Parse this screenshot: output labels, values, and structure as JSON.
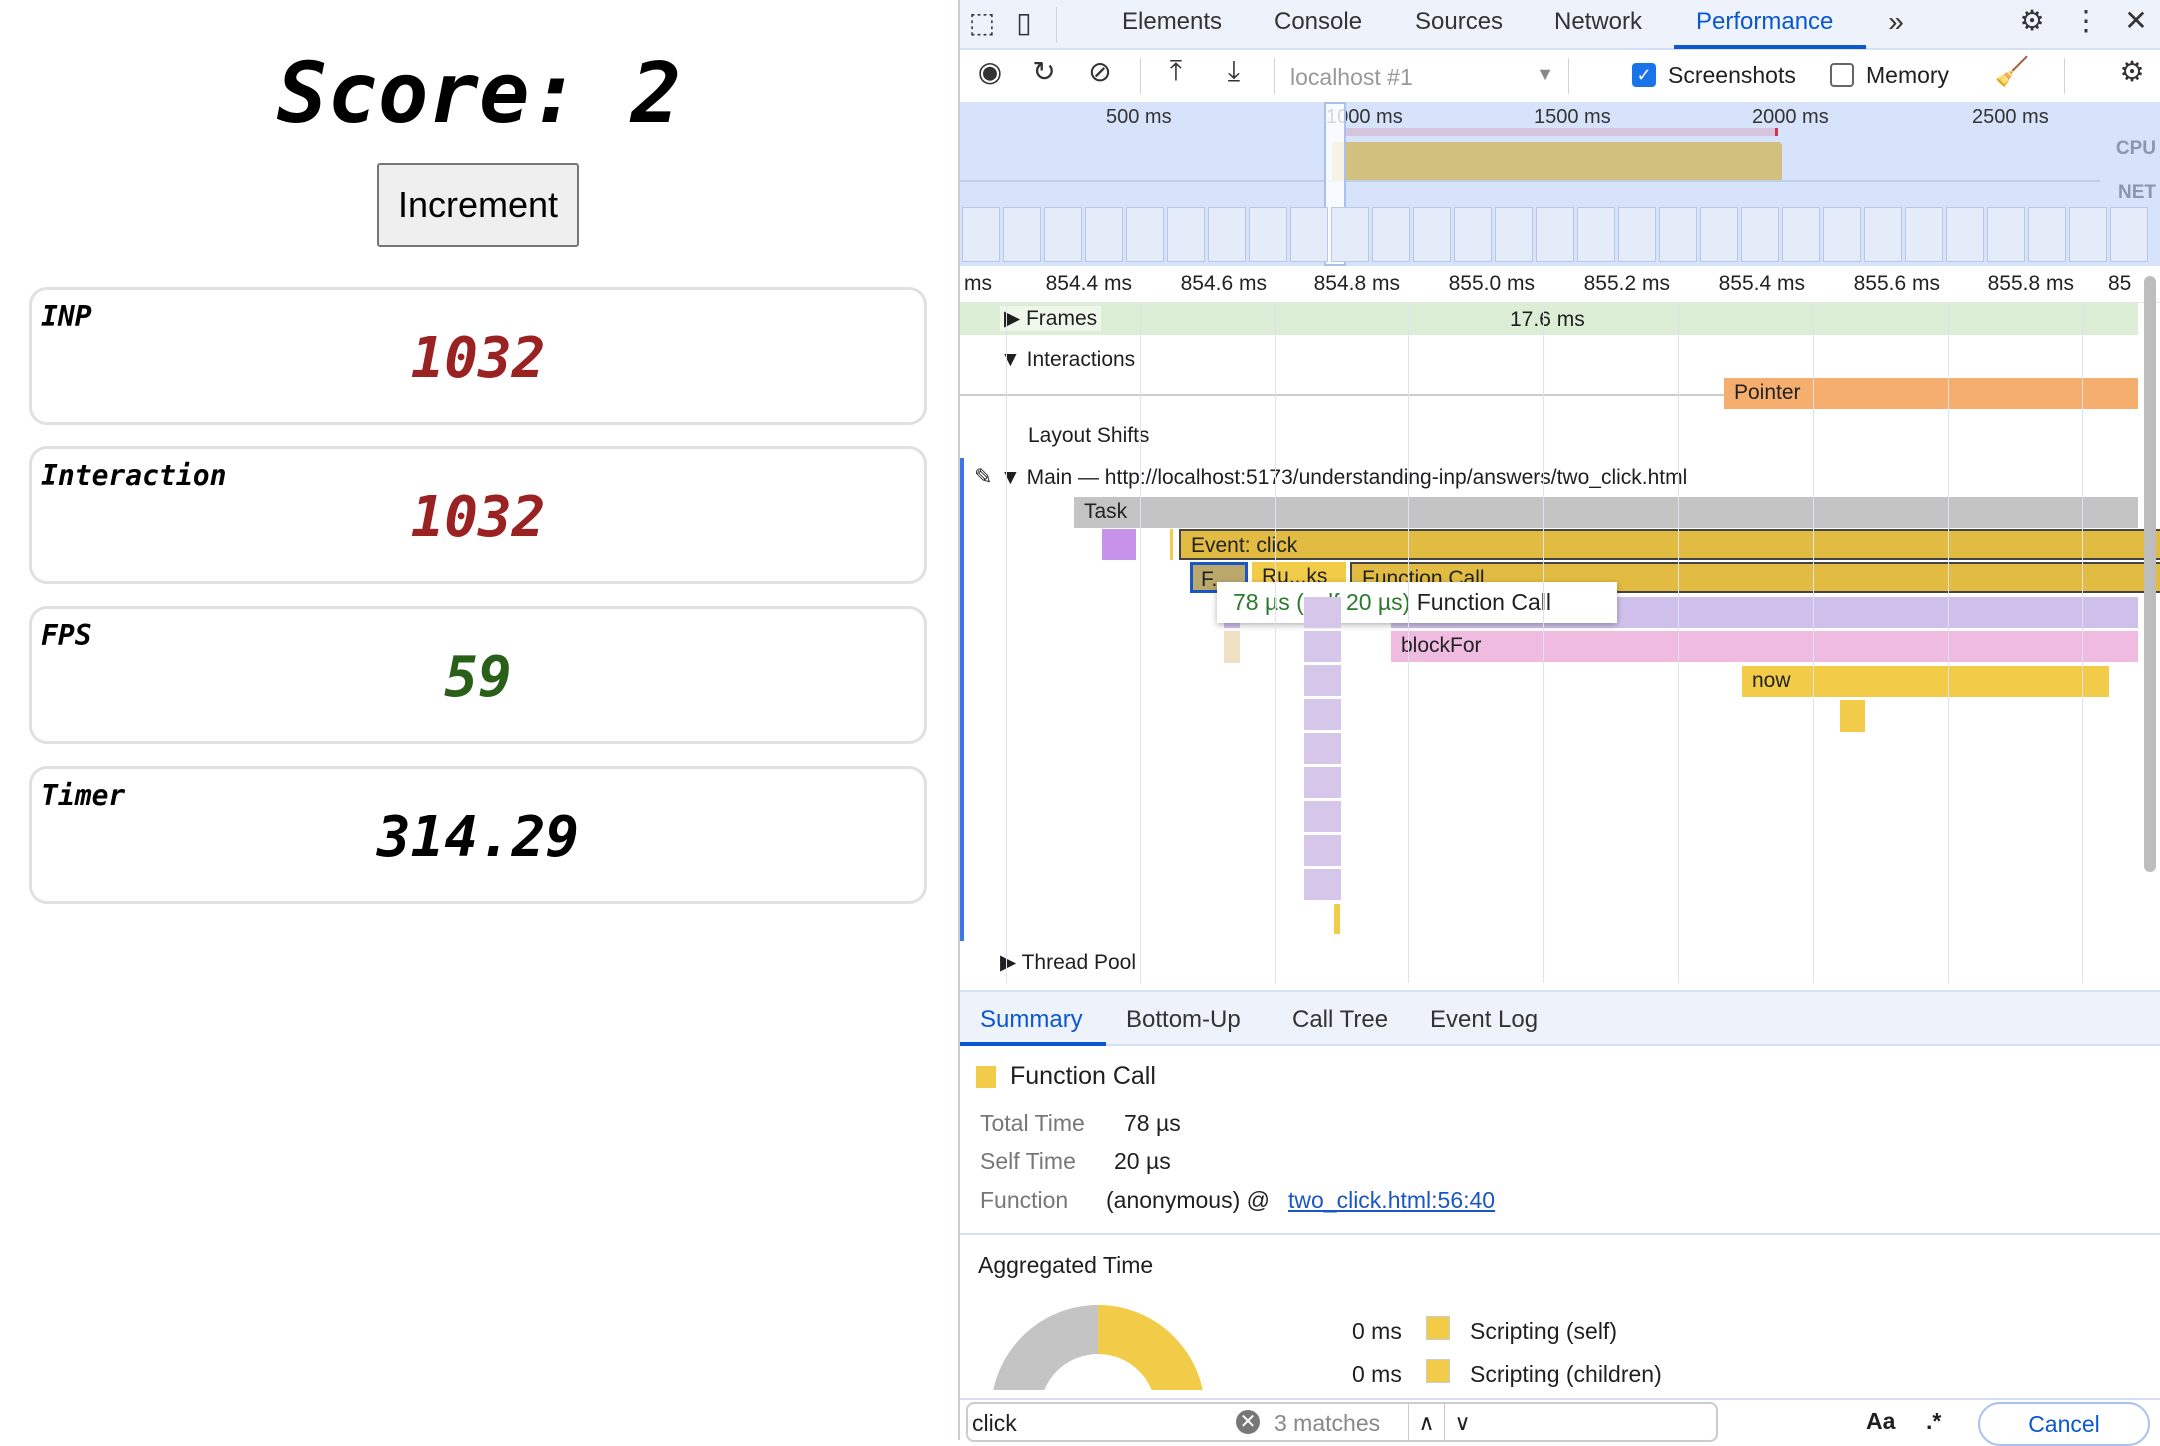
{
  "page": {
    "score": "Score: 2",
    "increment": "Increment",
    "cards": [
      {
        "label": "INP",
        "value": "1032",
        "color": "#9b2222"
      },
      {
        "label": "Interaction",
        "value": "1032",
        "color": "#9b2222"
      },
      {
        "label": "FPS",
        "value": "59",
        "color": "#2a5f1a"
      },
      {
        "label": "Timer",
        "value": "314.29",
        "color": "#000000"
      }
    ]
  },
  "devtools": {
    "tabs": [
      "Elements",
      "Console",
      "Sources",
      "Network",
      "Performance"
    ],
    "active_tab": "Performance",
    "toolbar": {
      "target": "localhost #1",
      "screenshots_label": "Screenshots",
      "screenshots_checked": true,
      "memory_label": "Memory",
      "memory_checked": false
    },
    "overview": {
      "ticks": [
        "500 ms",
        "1000 ms",
        "1500 ms",
        "2000 ms",
        "2500 ms"
      ],
      "cpu": "CPU",
      "net": "NET"
    },
    "ruler": [
      "ms",
      "854.4 ms",
      "854.6 ms",
      "854.8 ms",
      "855.0 ms",
      "855.2 ms",
      "855.4 ms",
      "855.6 ms",
      "855.8 ms",
      "85"
    ],
    "tracks": {
      "frames": "Frames",
      "frame_duration": "17.6 ms",
      "interactions": "Interactions",
      "pointer": "Pointer",
      "layout_shifts": "Layout Shifts",
      "main": "Main — http://localhost:5173/understanding-inp/answers/two_click.html",
      "thread_pool": "Thread Pool"
    },
    "flame": {
      "task": "Task",
      "event": "Event: click",
      "f": "F...",
      "ru": "Ru...ks",
      "fc": "Function Call",
      "blockfor": "blockFor",
      "now": "now"
    },
    "tooltip": {
      "time": "78 µs (self 20 µs)",
      "name": "Function Call"
    },
    "bottom_tabs": [
      "Summary",
      "Bottom-Up",
      "Call Tree",
      "Event Log"
    ],
    "summary": {
      "title": "Function Call",
      "color": "#f2cb48",
      "total_label": "Total Time",
      "total": "78 µs",
      "self_label": "Self Time",
      "self": "20 µs",
      "function_label": "Function",
      "function": "(anonymous) @ ",
      "link": "two_click.html:56:40",
      "aggregated": "Aggregated Time",
      "legend": [
        {
          "value": "0 ms",
          "label": "Scripting (self)"
        },
        {
          "value": "0 ms",
          "label": "Scripting (children)"
        }
      ]
    },
    "search": {
      "value": "click",
      "matches": "3 matches",
      "case": "Aa",
      "regex": ".*",
      "cancel": "Cancel"
    }
  }
}
